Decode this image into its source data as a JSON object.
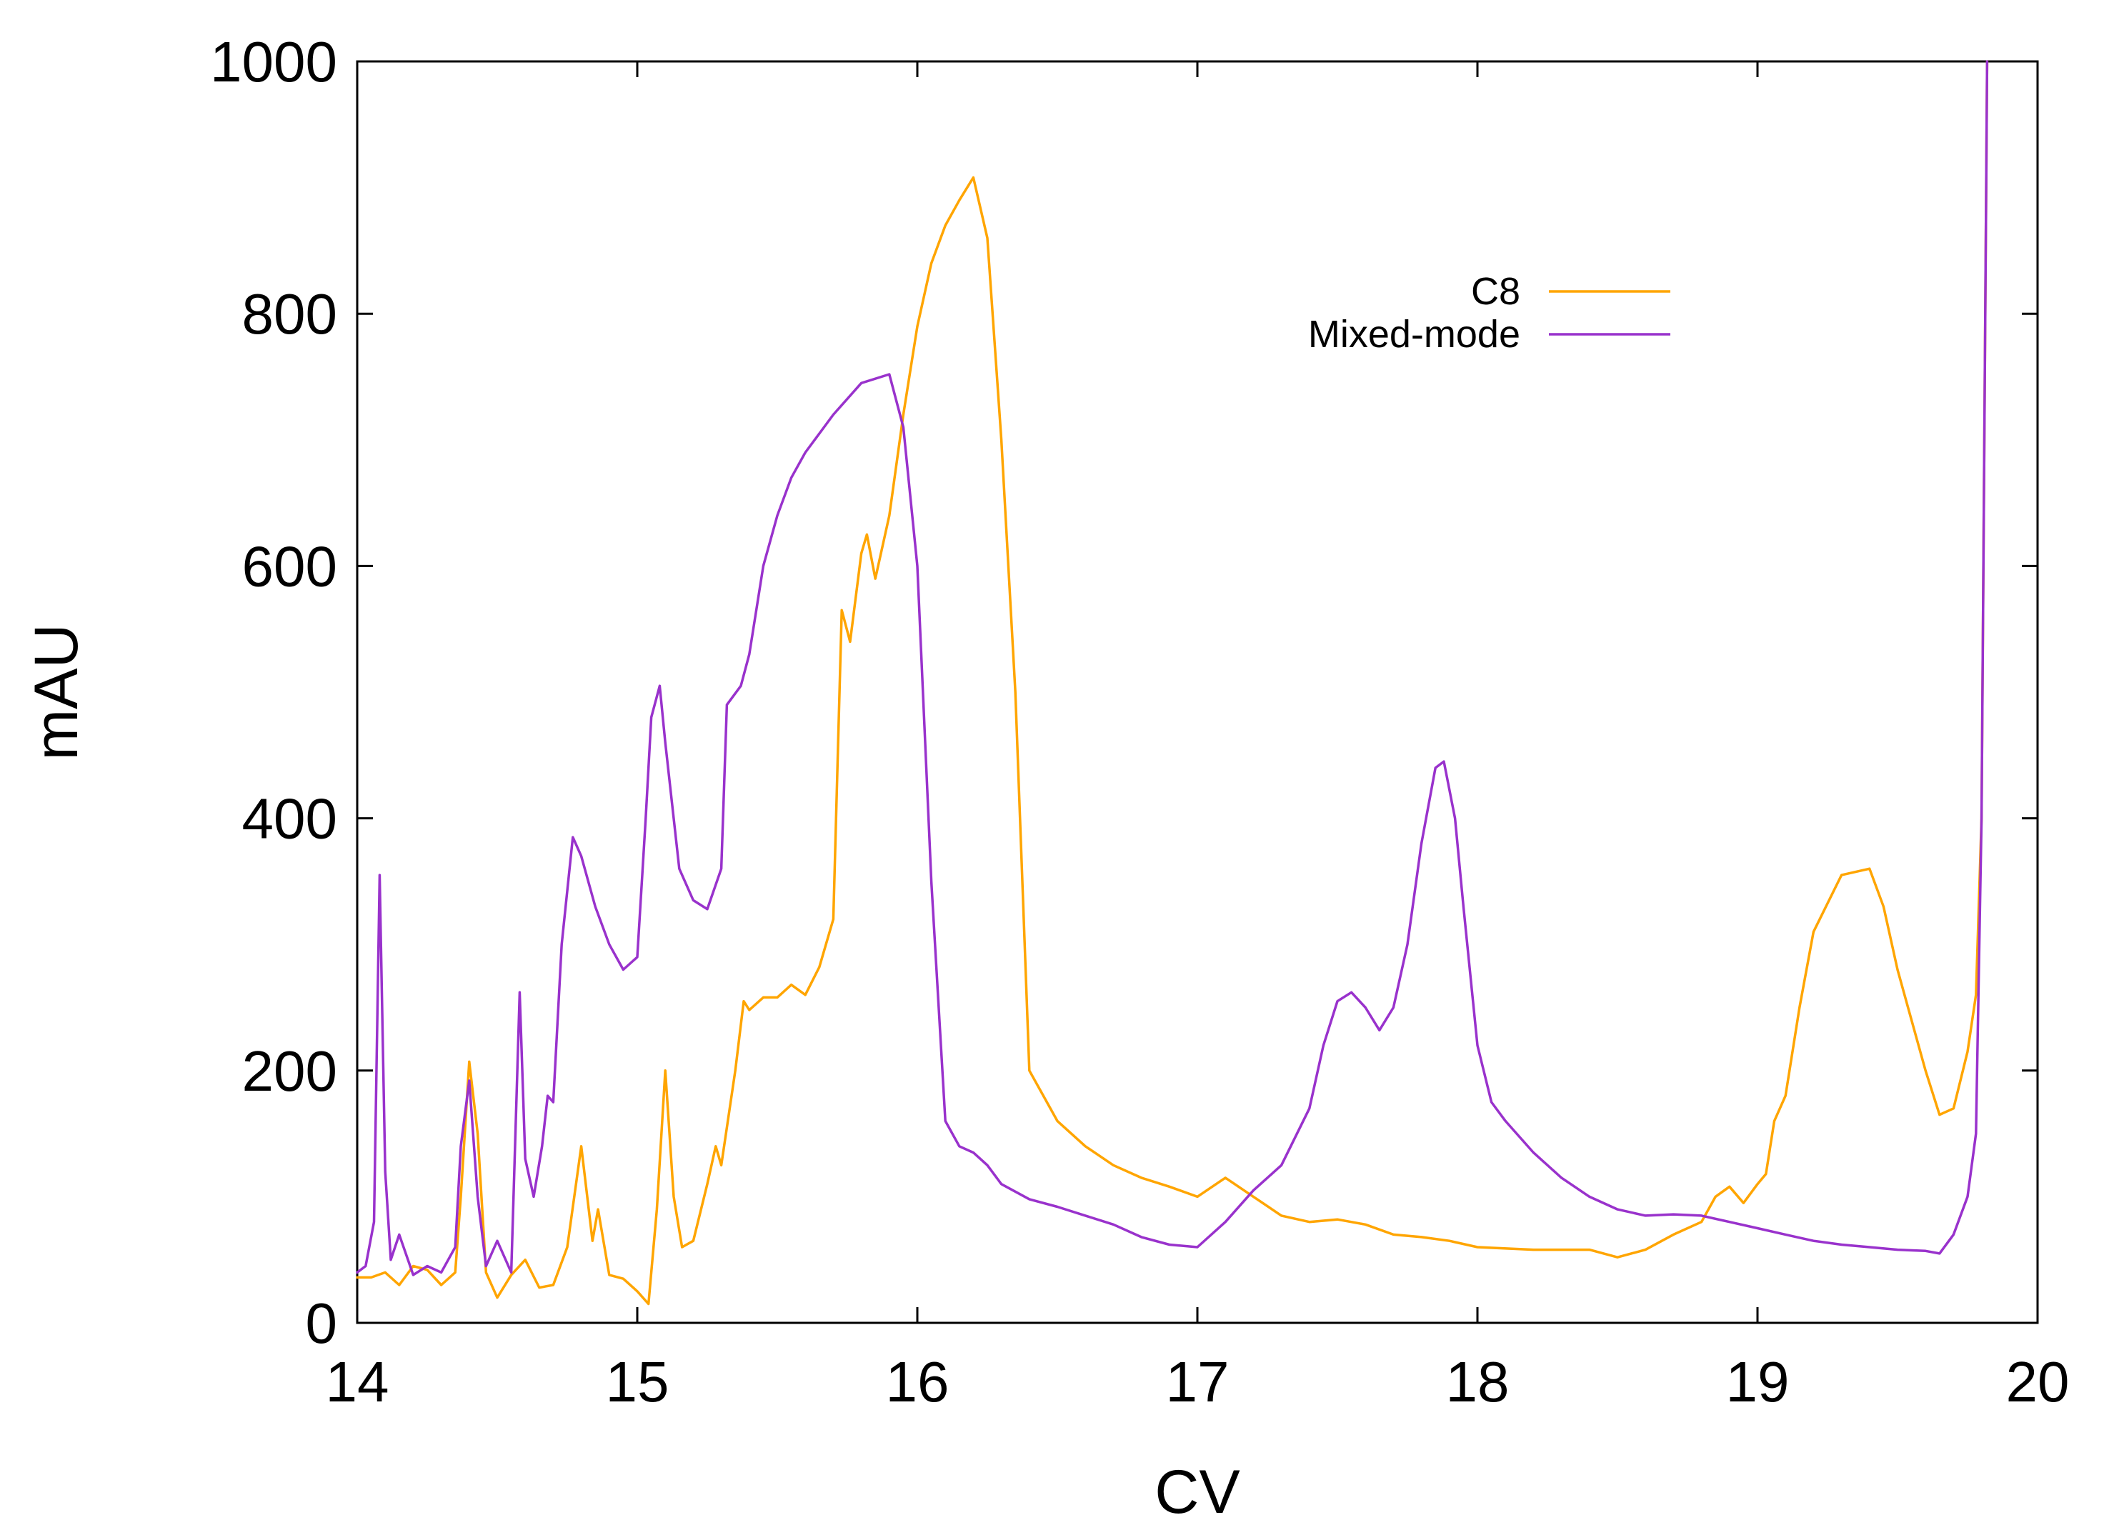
{
  "chart_data": {
    "type": "line",
    "title": "",
    "xlabel": "CV",
    "ylabel": "mAU",
    "xlim": [
      14,
      20
    ],
    "ylim": [
      0,
      1000
    ],
    "xticks": [
      14,
      15,
      16,
      17,
      18,
      19,
      20
    ],
    "yticks": [
      0,
      200,
      400,
      600,
      800,
      1000
    ],
    "grid": false,
    "legend_position": "top-right",
    "series": [
      {
        "name": "C8",
        "color": "#ffa500",
        "points": [
          [
            14.0,
            36
          ],
          [
            14.05,
            36
          ],
          [
            14.1,
            40
          ],
          [
            14.15,
            30
          ],
          [
            14.2,
            45
          ],
          [
            14.25,
            42
          ],
          [
            14.3,
            30
          ],
          [
            14.35,
            40
          ],
          [
            14.37,
            100
          ],
          [
            14.4,
            207
          ],
          [
            14.43,
            150
          ],
          [
            14.46,
            40
          ],
          [
            14.5,
            20
          ],
          [
            14.55,
            38
          ],
          [
            14.6,
            50
          ],
          [
            14.65,
            28
          ],
          [
            14.7,
            30
          ],
          [
            14.75,
            60
          ],
          [
            14.8,
            140
          ],
          [
            14.84,
            65
          ],
          [
            14.86,
            90
          ],
          [
            14.9,
            38
          ],
          [
            14.95,
            35
          ],
          [
            15.0,
            25
          ],
          [
            15.04,
            15
          ],
          [
            15.07,
            90
          ],
          [
            15.1,
            200
          ],
          [
            15.13,
            100
          ],
          [
            15.16,
            60
          ],
          [
            15.2,
            65
          ],
          [
            15.25,
            110
          ],
          [
            15.28,
            140
          ],
          [
            15.3,
            125
          ],
          [
            15.35,
            200
          ],
          [
            15.38,
            255
          ],
          [
            15.4,
            248
          ],
          [
            15.45,
            258
          ],
          [
            15.5,
            258
          ],
          [
            15.55,
            268
          ],
          [
            15.6,
            260
          ],
          [
            15.65,
            282
          ],
          [
            15.7,
            320
          ],
          [
            15.73,
            565
          ],
          [
            15.76,
            540
          ],
          [
            15.8,
            610
          ],
          [
            15.82,
            625
          ],
          [
            15.85,
            590
          ],
          [
            15.9,
            640
          ],
          [
            15.95,
            720
          ],
          [
            16.0,
            790
          ],
          [
            16.05,
            840
          ],
          [
            16.1,
            870
          ],
          [
            16.15,
            890
          ],
          [
            16.2,
            908
          ],
          [
            16.25,
            860
          ],
          [
            16.3,
            700
          ],
          [
            16.35,
            500
          ],
          [
            16.4,
            200
          ],
          [
            16.5,
            160
          ],
          [
            16.6,
            140
          ],
          [
            16.7,
            125
          ],
          [
            16.8,
            115
          ],
          [
            16.9,
            108
          ],
          [
            17.0,
            100
          ],
          [
            17.1,
            115
          ],
          [
            17.2,
            100
          ],
          [
            17.3,
            85
          ],
          [
            17.4,
            80
          ],
          [
            17.5,
            82
          ],
          [
            17.6,
            78
          ],
          [
            17.7,
            70
          ],
          [
            17.8,
            68
          ],
          [
            17.9,
            65
          ],
          [
            18.0,
            60
          ],
          [
            18.2,
            58
          ],
          [
            18.4,
            58
          ],
          [
            18.5,
            52
          ],
          [
            18.6,
            58
          ],
          [
            18.7,
            70
          ],
          [
            18.8,
            80
          ],
          [
            18.85,
            100
          ],
          [
            18.9,
            108
          ],
          [
            18.95,
            95
          ],
          [
            19.0,
            110
          ],
          [
            19.03,
            118
          ],
          [
            19.06,
            160
          ],
          [
            19.1,
            180
          ],
          [
            19.15,
            250
          ],
          [
            19.2,
            310
          ],
          [
            19.3,
            355
          ],
          [
            19.4,
            360
          ],
          [
            19.45,
            330
          ],
          [
            19.5,
            280
          ],
          [
            19.6,
            200
          ],
          [
            19.65,
            165
          ],
          [
            19.7,
            170
          ],
          [
            19.75,
            215
          ],
          [
            19.78,
            260
          ],
          [
            19.8,
            400
          ],
          [
            19.82,
            1000
          ]
        ]
      },
      {
        "name": "Mixed-mode",
        "color": "#9932cc",
        "points": [
          [
            14.0,
            40
          ],
          [
            14.03,
            45
          ],
          [
            14.06,
            80
          ],
          [
            14.08,
            355
          ],
          [
            14.1,
            120
          ],
          [
            14.12,
            50
          ],
          [
            14.15,
            70
          ],
          [
            14.2,
            38
          ],
          [
            14.25,
            45
          ],
          [
            14.3,
            40
          ],
          [
            14.35,
            60
          ],
          [
            14.37,
            140
          ],
          [
            14.4,
            192
          ],
          [
            14.43,
            100
          ],
          [
            14.46,
            45
          ],
          [
            14.5,
            65
          ],
          [
            14.55,
            40
          ],
          [
            14.58,
            262
          ],
          [
            14.6,
            130
          ],
          [
            14.63,
            100
          ],
          [
            14.66,
            140
          ],
          [
            14.68,
            180
          ],
          [
            14.7,
            175
          ],
          [
            14.73,
            300
          ],
          [
            14.77,
            385
          ],
          [
            14.8,
            370
          ],
          [
            14.85,
            330
          ],
          [
            14.9,
            300
          ],
          [
            14.95,
            280
          ],
          [
            15.0,
            290
          ],
          [
            15.03,
            400
          ],
          [
            15.05,
            480
          ],
          [
            15.08,
            505
          ],
          [
            15.1,
            460
          ],
          [
            15.15,
            360
          ],
          [
            15.2,
            335
          ],
          [
            15.25,
            328
          ],
          [
            15.3,
            360
          ],
          [
            15.32,
            490
          ],
          [
            15.37,
            505
          ],
          [
            15.4,
            530
          ],
          [
            15.45,
            600
          ],
          [
            15.5,
            640
          ],
          [
            15.55,
            670
          ],
          [
            15.6,
            690
          ],
          [
            15.7,
            720
          ],
          [
            15.8,
            745
          ],
          [
            15.9,
            752
          ],
          [
            15.95,
            710
          ],
          [
            16.0,
            600
          ],
          [
            16.05,
            350
          ],
          [
            16.1,
            160
          ],
          [
            16.15,
            140
          ],
          [
            16.2,
            135
          ],
          [
            16.25,
            125
          ],
          [
            16.3,
            110
          ],
          [
            16.4,
            98
          ],
          [
            16.5,
            92
          ],
          [
            16.6,
            85
          ],
          [
            16.7,
            78
          ],
          [
            16.8,
            68
          ],
          [
            16.9,
            62
          ],
          [
            17.0,
            60
          ],
          [
            17.1,
            80
          ],
          [
            17.2,
            105
          ],
          [
            17.3,
            125
          ],
          [
            17.4,
            170
          ],
          [
            17.45,
            220
          ],
          [
            17.5,
            255
          ],
          [
            17.55,
            262
          ],
          [
            17.6,
            250
          ],
          [
            17.65,
            232
          ],
          [
            17.7,
            250
          ],
          [
            17.75,
            300
          ],
          [
            17.8,
            380
          ],
          [
            17.85,
            440
          ],
          [
            17.88,
            445
          ],
          [
            17.92,
            400
          ],
          [
            17.95,
            330
          ],
          [
            18.0,
            220
          ],
          [
            18.05,
            175
          ],
          [
            18.1,
            160
          ],
          [
            18.2,
            135
          ],
          [
            18.3,
            115
          ],
          [
            18.4,
            100
          ],
          [
            18.5,
            90
          ],
          [
            18.6,
            85
          ],
          [
            18.7,
            86
          ],
          [
            18.8,
            85
          ],
          [
            18.9,
            80
          ],
          [
            19.0,
            75
          ],
          [
            19.1,
            70
          ],
          [
            19.2,
            65
          ],
          [
            19.3,
            62
          ],
          [
            19.4,
            60
          ],
          [
            19.5,
            58
          ],
          [
            19.6,
            57
          ],
          [
            19.65,
            55
          ],
          [
            19.7,
            70
          ],
          [
            19.75,
            100
          ],
          [
            19.78,
            150
          ],
          [
            19.8,
            400
          ],
          [
            19.82,
            1000
          ]
        ]
      }
    ]
  }
}
